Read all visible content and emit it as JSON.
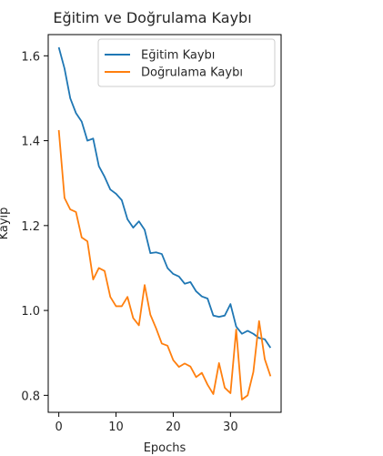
{
  "chart_data": {
    "type": "line",
    "title": "Eğitim ve Doğrulama Kaybı",
    "xlabel": "Epochs",
    "ylabel": "Kayıp",
    "xlim": [
      -1.85,
      38.85
    ],
    "ylim": [
      0.76,
      1.65
    ],
    "xticks": [
      0,
      10,
      20,
      30
    ],
    "yticks": [
      0.8,
      1.0,
      1.2,
      1.4,
      1.6
    ],
    "ytick_labels": [
      "0.8",
      "1.0",
      "1.2",
      "1.4",
      "1.6"
    ],
    "legend_position": "top-right",
    "series": [
      {
        "name": "Eğitim Kaybı",
        "color": "#1f77b4",
        "x": [
          0,
          1,
          2,
          3,
          4,
          5,
          6,
          7,
          8,
          9,
          10,
          11,
          12,
          13,
          14,
          15,
          16,
          17,
          18,
          19,
          20,
          21,
          22,
          23,
          24,
          25,
          26,
          27,
          28,
          29,
          30,
          31,
          32,
          33,
          34,
          35,
          36,
          37
        ],
        "values": [
          1.62,
          1.57,
          1.5,
          1.465,
          1.445,
          1.4,
          1.405,
          1.34,
          1.315,
          1.285,
          1.275,
          1.26,
          1.215,
          1.195,
          1.21,
          1.19,
          1.135,
          1.137,
          1.133,
          1.1,
          1.086,
          1.08,
          1.063,
          1.067,
          1.045,
          1.033,
          1.028,
          0.988,
          0.985,
          0.988,
          1.015,
          0.962,
          0.945,
          0.952,
          0.945,
          0.935,
          0.932,
          0.912
        ]
      },
      {
        "name": "Doğrulama Kaybı",
        "color": "#ff7f0e",
        "x": [
          0,
          1,
          2,
          3,
          4,
          5,
          6,
          7,
          8,
          9,
          10,
          11,
          12,
          13,
          14,
          15,
          16,
          17,
          18,
          19,
          20,
          21,
          22,
          23,
          24,
          25,
          26,
          27,
          28,
          29,
          30,
          31,
          32,
          33,
          34,
          35,
          36,
          37
        ],
        "values": [
          1.425,
          1.265,
          1.238,
          1.232,
          1.172,
          1.163,
          1.073,
          1.1,
          1.093,
          1.032,
          1.01,
          1.01,
          1.032,
          0.982,
          0.965,
          1.06,
          0.99,
          0.958,
          0.922,
          0.917,
          0.883,
          0.867,
          0.875,
          0.868,
          0.843,
          0.853,
          0.825,
          0.803,
          0.876,
          0.818,
          0.805,
          0.955,
          0.79,
          0.8,
          0.855,
          0.975,
          0.885,
          0.845
        ]
      }
    ]
  }
}
